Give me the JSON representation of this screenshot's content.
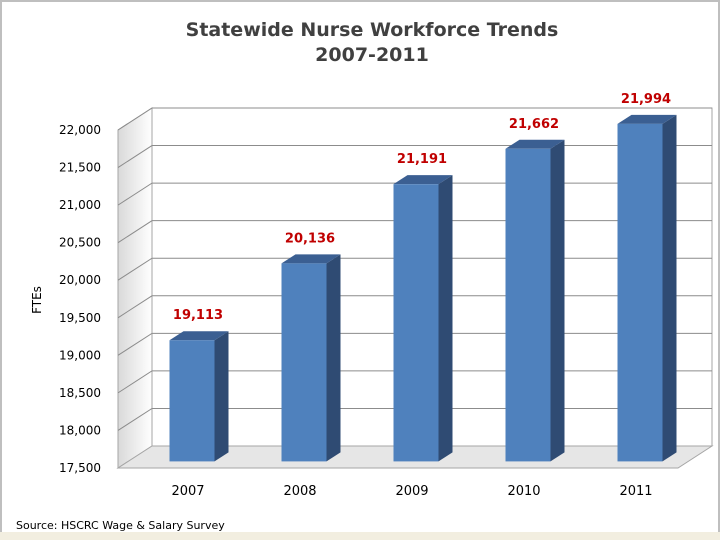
{
  "chart_data": {
    "type": "bar",
    "title": "Statewide Nurse Workforce Trends",
    "subtitle": "2007-2011",
    "xlabel": "",
    "ylabel": "FTEs",
    "categories": [
      "2007",
      "2008",
      "2009",
      "2010",
      "2011"
    ],
    "values": [
      19113,
      20136,
      21191,
      21662,
      21994
    ],
    "data_labels": [
      "19,113",
      "20,136",
      "21,191",
      "21,662",
      "21,994"
    ],
    "ylim": [
      17500,
      22000
    ],
    "yticks": [
      17500,
      18000,
      18500,
      19000,
      19500,
      20000,
      20500,
      21000,
      21500,
      22000
    ],
    "ytick_labels": [
      "17,500",
      "18,000",
      "18,500",
      "19,000",
      "19,500",
      "20,000",
      "20,500",
      "21,000",
      "21,500",
      "22,000"
    ],
    "grid": true,
    "legend": "none",
    "bar_color": "#4f81bd",
    "label_color": "#c00000",
    "source": "Source: HSCRC Wage & Salary Survey"
  }
}
